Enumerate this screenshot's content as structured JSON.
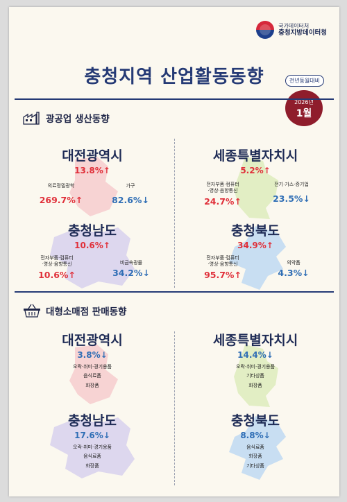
{
  "header": {
    "agency_top": "국가데이터처",
    "agency_bottom": "충청지방데이터청",
    "title": "충청지역 산업활동동향",
    "comparison": "전년동월대비",
    "year": "2026년",
    "month": "1월"
  },
  "colors": {
    "increase": "#e0303a",
    "decrease": "#2f6eb5",
    "navy": "#253a75",
    "badge": "#8f1d2c"
  },
  "icons": {
    "production": "factory-icon",
    "retail": "basket-icon"
  },
  "production": {
    "heading": "광공업 생산동향",
    "daejeon": {
      "name": "대전광역시",
      "total": "13.8%↑",
      "left_label": "의료정밀광학",
      "left_value": "269.7%↑",
      "right_label": "가구",
      "right_value": "82.6%↓"
    },
    "sejong": {
      "name": "세종특별자치시",
      "total": "5.2%↑",
      "left_label_1": "전자부품·컴퓨터",
      "left_label_2": "·영상·음향통신",
      "left_value": "24.7%↑",
      "right_label": "전기·가스·증기업",
      "right_value": "23.5%↓"
    },
    "chungnam": {
      "name": "충청남도",
      "total": "10.6%↑",
      "left_label_1": "전자부품·컴퓨터",
      "left_label_2": "·영상·음향통신",
      "left_value": "10.6%↑",
      "right_label": "비금속광물",
      "right_value": "34.2%↓"
    },
    "chungbuk": {
      "name": "충청북도",
      "total": "34.9%↑",
      "left_label_1": "전자부품·컴퓨터",
      "left_label_2": "·영상·음향통신",
      "left_value": "95.7%↑",
      "right_label": "의약품",
      "right_value": "4.3%↓"
    }
  },
  "retail": {
    "heading": "대형소매점 판매동향",
    "daejeon": {
      "name": "대전광역시",
      "total": "3.8%↓",
      "items": [
        "오락·취미·경기용품",
        "음식료품",
        "화장품"
      ]
    },
    "sejong": {
      "name": "세종특별자치시",
      "total": "14.4%↓",
      "items": [
        "오락·취미·경기용품",
        "기타상품",
        "화장품"
      ]
    },
    "chungnam": {
      "name": "충청남도",
      "total": "17.6%↓",
      "items": [
        "오락·취미·경기용품",
        "음식료품",
        "화장품"
      ]
    },
    "chungbuk": {
      "name": "충청북도",
      "total": "8.8%↓",
      "items": [
        "음식료품",
        "화장품",
        "기타상품"
      ]
    }
  }
}
